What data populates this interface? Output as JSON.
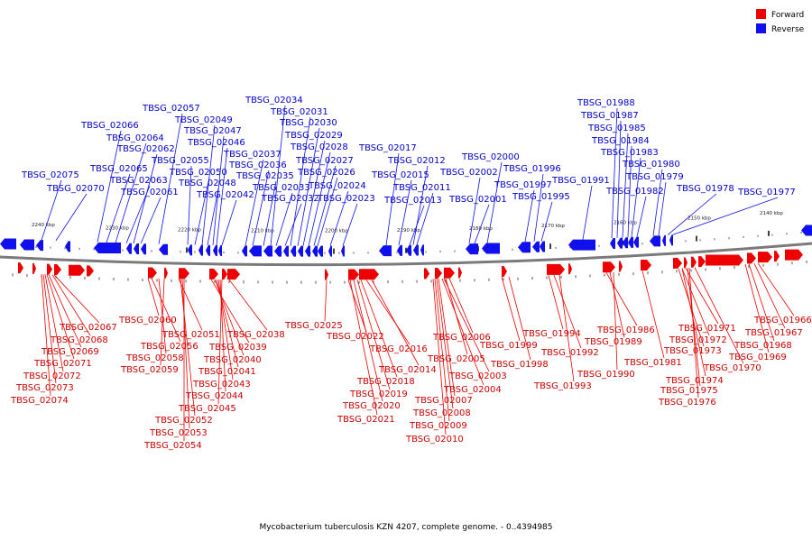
{
  "legend": {
    "forward_label": "Forward",
    "reverse_label": "Reverse",
    "forward_color": "#ee0000",
    "reverse_color": "#1010ee"
  },
  "caption": "Mycobacterium tuberculosis KZN 4207, complete genome. - 0..4394985",
  "ticks": [
    "2240 kbp",
    "2230 kbp",
    "2220 kbp",
    "2210 kbp",
    "2200 kbp",
    "2190 kbp",
    "2180 kbp",
    "2170 kbp",
    "2160 kbp",
    "2150 kbp",
    "2140 kbp"
  ],
  "reverse_genes": [
    "TBSG_02075",
    "TBSG_02070",
    "TBSG_02066",
    "TBSG_02065",
    "TBSG_02064",
    "TBSG_02063",
    "TBSG_02062",
    "TBSG_02061",
    "TBSG_02057",
    "TBSG_02055",
    "TBSG_02050",
    "TBSG_02049",
    "TBSG_02048",
    "TBSG_02047",
    "TBSG_02046",
    "TBSG_02042",
    "TBSG_02037",
    "TBSG_02036",
    "TBSG_02035",
    "TBSG_02034",
    "TBSG_02033",
    "TBSG_02032",
    "TBSG_02031",
    "TBSG_02030",
    "TBSG_02029",
    "TBSG_02028",
    "TBSG_02027",
    "TBSG_02026",
    "TBSG_02024",
    "TBSG_02023",
    "TBSG_02017",
    "TBSG_02015",
    "TBSG_02013",
    "TBSG_02012",
    "TBSG_02011",
    "TBSG_02002",
    "TBSG_02001",
    "TBSG_02000",
    "TBSG_01997",
    "TBSG_01996",
    "TBSG_01995",
    "TBSG_01991",
    "TBSG_01988",
    "TBSG_01987",
    "TBSG_01985",
    "TBSG_01984",
    "TBSG_01983",
    "TBSG_01982",
    "TBSG_01980",
    "TBSG_01979",
    "TBSG_01978",
    "TBSG_01977"
  ],
  "forward_genes": [
    "TBSG_02067",
    "TBSG_02068",
    "TBSG_02069",
    "TBSG_02071",
    "TBSG_02072",
    "TBSG_02073",
    "TBSG_02074",
    "TBSG_02060",
    "TBSG_02056",
    "TBSG_02058",
    "TBSG_02059",
    "TBSG_02051",
    "TBSG_02039",
    "TBSG_02040",
    "TBSG_02041",
    "TBSG_02043",
    "TBSG_02044",
    "TBSG_02045",
    "TBSG_02052",
    "TBSG_02053",
    "TBSG_02054",
    "TBSG_02038",
    "TBSG_02025",
    "TBSG_02022",
    "TBSG_02016",
    "TBSG_02014",
    "TBSG_02018",
    "TBSG_02019",
    "TBSG_02020",
    "TBSG_02021",
    "TBSG_02006",
    "TBSG_02005",
    "TBSG_02003",
    "TBSG_02004",
    "TBSG_02007",
    "TBSG_02008",
    "TBSG_02009",
    "TBSG_02010",
    "TBSG_01999",
    "TBSG_01998",
    "TBSG_01994",
    "TBSG_01992",
    "TBSG_01993",
    "TBSG_01986",
    "TBSG_01989",
    "TBSG_01990",
    "TBSG_01981",
    "TBSG_01971",
    "TBSG_01972",
    "TBSG_01973",
    "TBSG_01974",
    "TBSG_01975",
    "TBSG_01976",
    "TBSG_01970",
    "TBSG_01966",
    "TBSG_01967",
    "TBSG_01968",
    "TBSG_01969"
  ]
}
